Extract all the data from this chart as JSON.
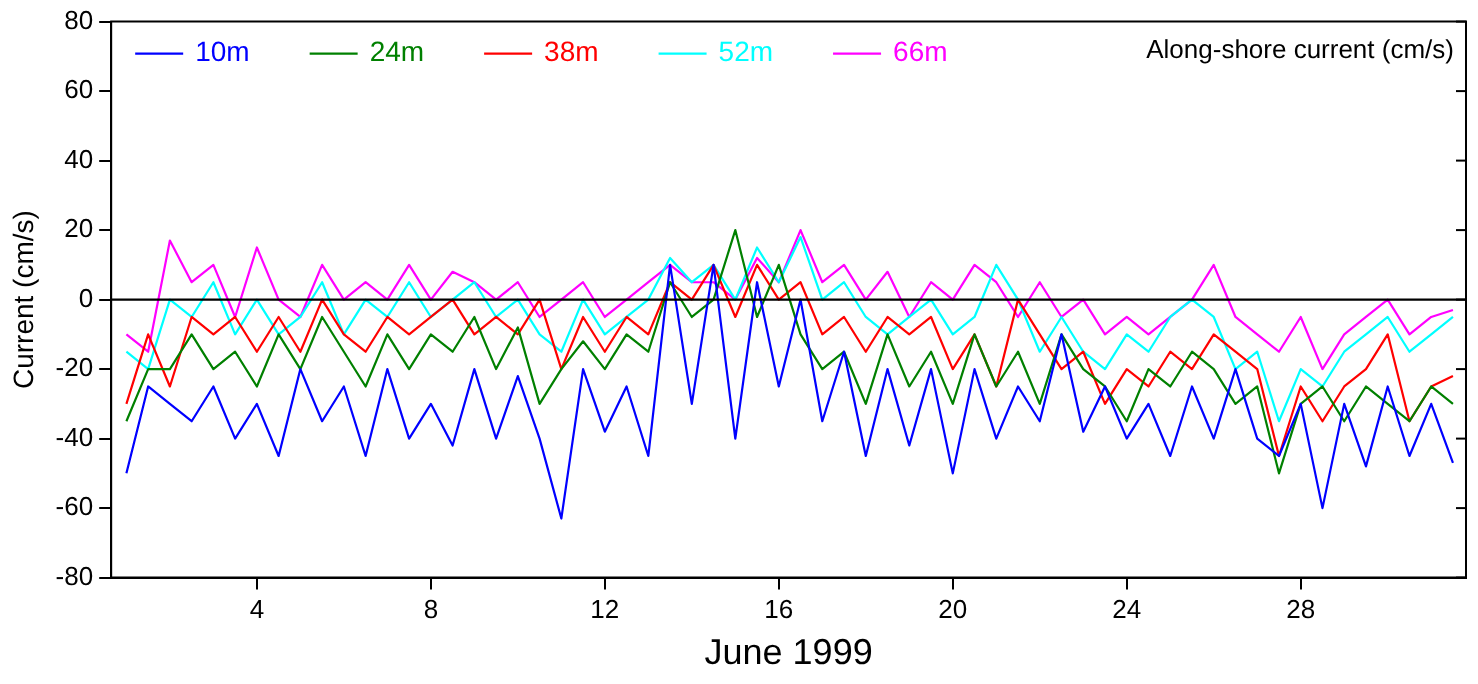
{
  "chart_data": {
    "type": "line",
    "xlabel": "June 1999",
    "ylabel": "Current (cm/s)",
    "annotations": [
      "Along-shore current (cm/s)"
    ],
    "legend": "top left",
    "grid": false,
    "marker": "none",
    "line_style": "solid",
    "xlim": [
      0.65,
      31.8
    ],
    "xticks": [
      4,
      8,
      12,
      16,
      20,
      24,
      28
    ],
    "ylim": [
      -80,
      80
    ],
    "yticks": [
      -80,
      -60,
      -40,
      -20,
      0,
      20,
      40,
      60,
      80
    ],
    "ref_lines": [
      {
        "axis": "y",
        "value": 0,
        "color": "#000000"
      }
    ],
    "x": [
      1,
      1.5,
      2,
      2.5,
      3,
      3.5,
      4,
      4.5,
      5,
      5.5,
      6,
      6.5,
      7,
      7.5,
      8,
      8.5,
      9,
      9.5,
      10,
      10.5,
      11,
      11.5,
      12,
      12.5,
      13,
      13.5,
      14,
      14.5,
      15,
      15.5,
      16,
      16.5,
      17,
      17.5,
      18,
      18.5,
      19,
      19.5,
      20,
      20.5,
      21,
      21.5,
      22,
      22.5,
      23,
      23.5,
      24,
      24.5,
      25,
      25.5,
      26,
      26.5,
      27,
      27.5,
      28,
      28.5,
      29,
      29.5,
      30,
      30.5,
      31,
      31.5
    ],
    "series": [
      {
        "name": "10m",
        "color": "#0000ff",
        "values": [
          -50,
          -25,
          -30,
          -35,
          -25,
          -40,
          -30,
          -45,
          -20,
          -35,
          -25,
          -45,
          -20,
          -40,
          -30,
          -42,
          -20,
          -40,
          -22,
          -40,
          -63,
          -20,
          -38,
          -25,
          -45,
          10,
          -30,
          10,
          -40,
          5,
          -25,
          0,
          -35,
          -15,
          -45,
          -20,
          -42,
          -20,
          -50,
          -20,
          -40,
          -25,
          -35,
          -10,
          -38,
          -25,
          -40,
          -30,
          -45,
          -25,
          -40,
          -20,
          -40,
          -45,
          -30,
          -60,
          -30,
          -48,
          -25,
          -45,
          -30,
          -47
        ]
      },
      {
        "name": "24m",
        "color": "#008000",
        "values": [
          -35,
          -20,
          -20,
          -10,
          -20,
          -15,
          -25,
          -10,
          -20,
          -5,
          -15,
          -25,
          -10,
          -20,
          -10,
          -15,
          -5,
          -20,
          -8,
          -30,
          -20,
          -12,
          -20,
          -10,
          -15,
          5,
          -5,
          0,
          20,
          -5,
          10,
          -10,
          -20,
          -15,
          -30,
          -10,
          -25,
          -15,
          -30,
          -10,
          -25,
          -15,
          -30,
          -10,
          -20,
          -25,
          -35,
          -20,
          -25,
          -15,
          -20,
          -30,
          -25,
          -50,
          -30,
          -25,
          -35,
          -25,
          -30,
          -35,
          -25,
          -30
        ]
      },
      {
        "name": "38m",
        "color": "#ff0000",
        "values": [
          -30,
          -10,
          -25,
          -5,
          -10,
          -5,
          -15,
          -5,
          -15,
          0,
          -10,
          -15,
          -5,
          -10,
          -5,
          0,
          -10,
          -5,
          -10,
          0,
          -20,
          -5,
          -15,
          -5,
          -10,
          5,
          0,
          10,
          -5,
          10,
          0,
          5,
          -10,
          -5,
          -15,
          -5,
          -10,
          -5,
          -20,
          -10,
          -25,
          0,
          -10,
          -20,
          -15,
          -30,
          -20,
          -25,
          -15,
          -20,
          -10,
          -15,
          -20,
          -45,
          -25,
          -35,
          -25,
          -20,
          -10,
          -35,
          -25,
          -22
        ]
      },
      {
        "name": "52m",
        "color": "#00ffff",
        "values": [
          -15,
          -20,
          0,
          -5,
          5,
          -10,
          0,
          -10,
          -5,
          5,
          -10,
          0,
          -5,
          5,
          -5,
          0,
          5,
          -5,
          0,
          -10,
          -15,
          0,
          -10,
          -5,
          0,
          12,
          5,
          10,
          0,
          15,
          5,
          18,
          0,
          5,
          -5,
          -10,
          -5,
          0,
          -10,
          -5,
          10,
          0,
          -15,
          -5,
          -15,
          -20,
          -10,
          -15,
          -5,
          0,
          -5,
          -20,
          -15,
          -35,
          -20,
          -25,
          -15,
          -10,
          -5,
          -15,
          -10,
          -5
        ]
      },
      {
        "name": "66m",
        "color": "#ff00ff",
        "values": [
          -10,
          -15,
          17,
          5,
          10,
          -5,
          15,
          0,
          -5,
          10,
          0,
          5,
          0,
          10,
          0,
          8,
          5,
          0,
          5,
          -5,
          0,
          5,
          -5,
          0,
          5,
          10,
          5,
          5,
          0,
          12,
          5,
          20,
          5,
          10,
          0,
          8,
          -5,
          5,
          0,
          10,
          5,
          -5,
          5,
          -5,
          0,
          -10,
          -5,
          -10,
          -5,
          0,
          10,
          -5,
          -10,
          -15,
          -5,
          -20,
          -10,
          -5,
          0,
          -10,
          -5,
          -3
        ]
      }
    ]
  }
}
